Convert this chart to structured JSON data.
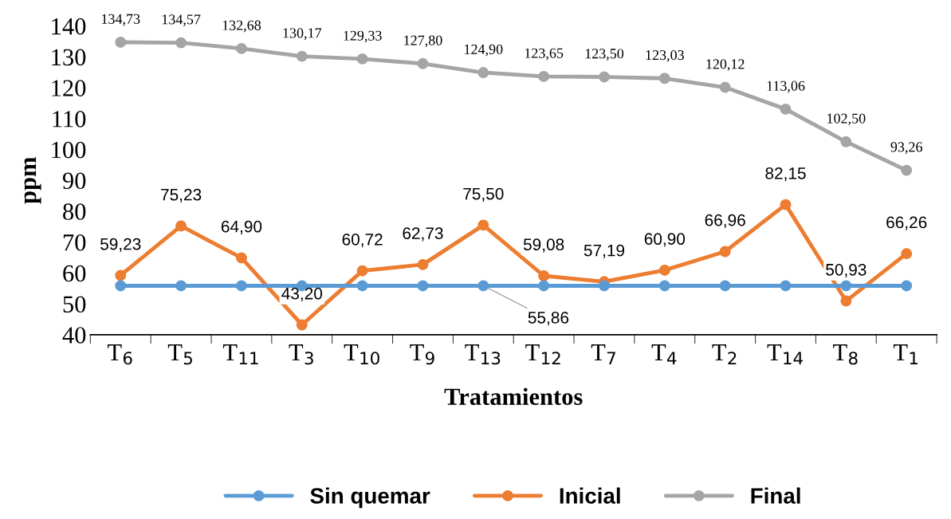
{
  "chart_data": {
    "type": "line",
    "xlabel": "Tratamientos",
    "ylabel": "ppm",
    "categories": [
      "T$_{6}$",
      "T$_{5}$",
      "T$_{11}$",
      "T$_{3}$",
      "T$_{10}$",
      "T$_{9}$",
      "T$_{13}$",
      "T$_{12}$",
      "T$_{7}$",
      "T$_{4}$",
      "T$_{2}$",
      "T$_{14}$",
      "T$_{8}$",
      "T$_{1}$"
    ],
    "series": [
      {
        "name": "Sin quemar",
        "color": "#5b9bd5",
        "values": [
          55.86,
          55.86,
          55.86,
          55.86,
          55.86,
          55.86,
          55.86,
          55.86,
          55.86,
          55.86,
          55.86,
          55.86,
          55.86,
          55.86
        ],
        "value_labels": [
          null,
          null,
          null,
          null,
          null,
          null,
          "55,86",
          null,
          null,
          null,
          null,
          null,
          null,
          null
        ]
      },
      {
        "name": "Inicial",
        "color": "#ed7d31",
        "values": [
          59.23,
          75.23,
          64.9,
          43.2,
          60.72,
          62.73,
          75.5,
          59.08,
          57.19,
          60.9,
          66.96,
          82.15,
          50.93,
          66.26
        ],
        "value_labels": [
          "59,23",
          "75,23",
          "64,90",
          "43,20",
          "60,72",
          "62,73",
          "75,50",
          "59,08",
          "57,19",
          "60,90",
          "66,96",
          "82,15",
          "50,93",
          "66,26"
        ]
      },
      {
        "name": "Final",
        "color": "#a5a5a5",
        "values": [
          134.73,
          134.57,
          132.68,
          130.17,
          129.33,
          127.8,
          124.9,
          123.65,
          123.5,
          123.03,
          120.12,
          113.06,
          102.5,
          93.26
        ],
        "value_labels": [
          "134,73",
          "134,57",
          "132,68",
          "130,17",
          "129,33",
          "127,80",
          "124,90",
          "123,65",
          "123,50",
          "123,03",
          "120,12",
          "113,06",
          "102,50",
          "93,26"
        ]
      }
    ],
    "ylim": [
      40,
      140
    ],
    "yticks": [
      40,
      50,
      60,
      70,
      80,
      90,
      100,
      110,
      120,
      130,
      140
    ],
    "grid": false,
    "legend": "bottom",
    "marker": "circle",
    "line_style": "solid"
  }
}
